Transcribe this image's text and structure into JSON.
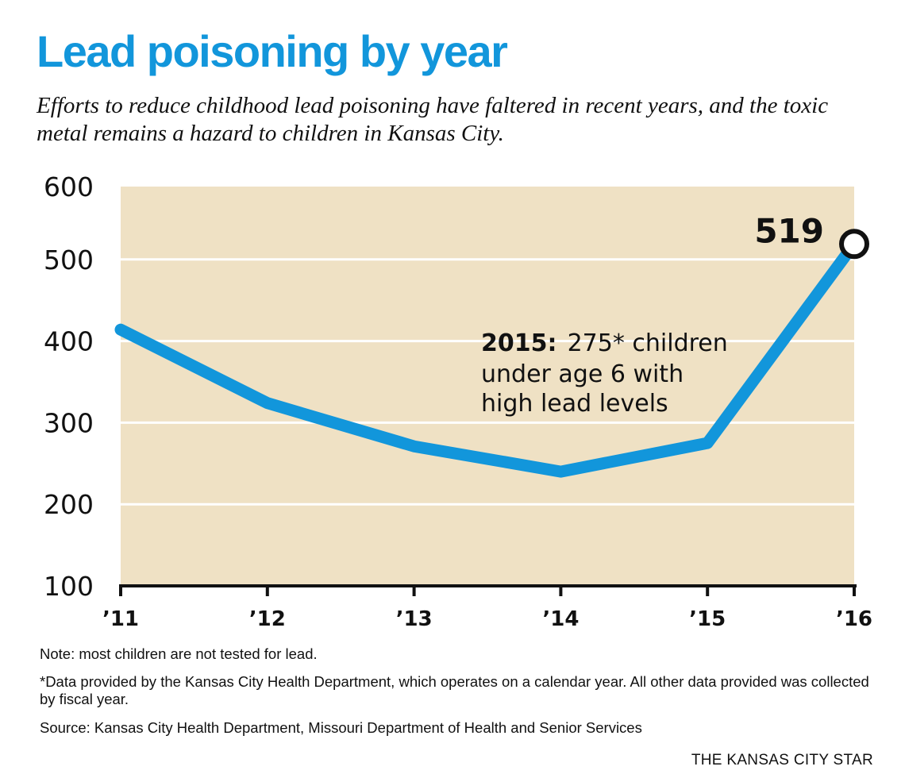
{
  "chart_data": {
    "type": "line",
    "title": "Lead poisoning by year",
    "subtitle": "Efforts to reduce childhood lead poisoning have faltered in recent years, and the toxic metal remains a hazard to children in Kansas City.",
    "categories": [
      "’11",
      "’12",
      "’13",
      "’14",
      "’15",
      "’16"
    ],
    "x": [
      2011,
      2012,
      2013,
      2014,
      2015,
      2016
    ],
    "series": [
      {
        "name": "Children with high lead levels",
        "values": [
          414,
          324,
          271,
          240,
          275,
          519
        ]
      }
    ],
    "yticks": [
      100,
      200,
      300,
      400,
      500,
      600
    ],
    "ylim": [
      100,
      600
    ],
    "xlabel": "",
    "ylabel": "",
    "grid": true,
    "end_label": "519",
    "annotation": {
      "bold": "2015:",
      "lines": [
        "275* children",
        "under age 6 with",
        "high lead levels"
      ]
    },
    "colors": {
      "line": "#1296db",
      "background": "#efe1c4",
      "grid": "#ffffff"
    }
  },
  "notes": {
    "note": "Note: most children are not tested for lead.",
    "footnote": "*Data provided by the Kansas City Health Department, which operates on a calendar year. All other data provided was collected by fiscal year.",
    "source": "Source: Kansas City Health Department, Missouri Department of Health and Senior Services"
  },
  "credit": "THE KANSAS CITY STAR"
}
